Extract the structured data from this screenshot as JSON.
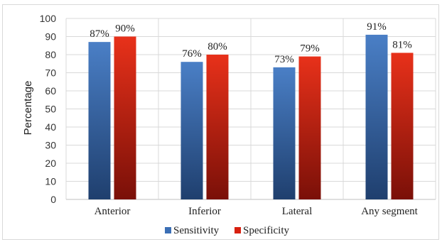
{
  "chart_data": {
    "type": "bar",
    "categories": [
      "Anterior",
      "Inferior",
      "Lateral",
      "Any segment"
    ],
    "series": [
      {
        "name": "Sensitivity",
        "values": [
          87,
          76,
          73,
          91
        ],
        "labels": [
          "87%",
          "76%",
          "73%",
          "91%"
        ],
        "color_top": "#4a7fc6",
        "color_bottom": "#1f3f6e"
      },
      {
        "name": "Specificity",
        "values": [
          90,
          80,
          79,
          81
        ],
        "labels": [
          "90%",
          "80%",
          "79%",
          "81%"
        ],
        "color_top": "#e8311a",
        "color_bottom": "#7a1008"
      }
    ],
    "ylabel": "Percentage",
    "xlabel": "",
    "ylim": [
      0,
      100
    ],
    "yticks": [
      0,
      10,
      20,
      30,
      40,
      50,
      60,
      70,
      80,
      90,
      100
    ],
    "grid": "horizontal major + category separators",
    "legend": "bottom-center"
  }
}
